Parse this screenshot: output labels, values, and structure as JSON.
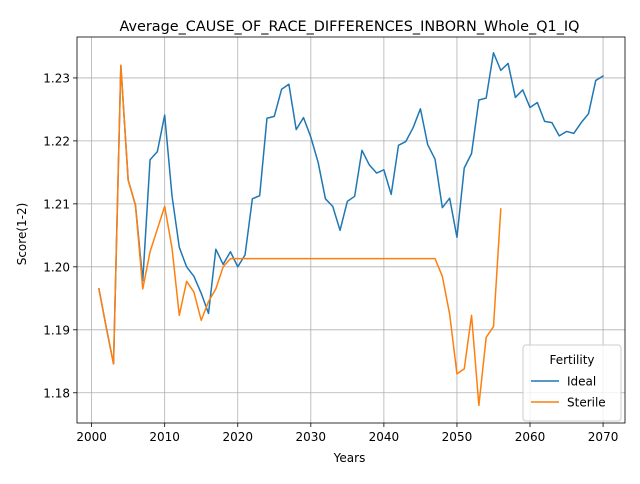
{
  "chart_data": {
    "type": "line",
    "title": "Average_CAUSE_OF_RACE_DIFFERENCES_INBORN_Whole_Q1_IQ",
    "xlabel": "Years",
    "ylabel": "Score(1-2)",
    "xlim": [
      1998,
      2073
    ],
    "ylim": [
      1.1752,
      1.2365
    ],
    "xticks": [
      2000,
      2010,
      2020,
      2030,
      2040,
      2050,
      2060,
      2070
    ],
    "yticks": [
      1.18,
      1.19,
      1.2,
      1.21,
      1.22,
      1.23
    ],
    "ytick_labels": [
      "1.18",
      "1.19",
      "1.20",
      "1.21",
      "1.22",
      "1.23"
    ],
    "xtick_labels": [
      "2000",
      "2010",
      "2020",
      "2030",
      "2040",
      "2050",
      "2060",
      "2070"
    ],
    "grid": true,
    "legend": {
      "title": "Fertility",
      "position": "lower right"
    },
    "series": [
      {
        "name": "Ideal",
        "color": "#1f77b4",
        "x": [
          2001,
          2002,
          2003,
          2004,
          2005,
          2006,
          2007,
          2008,
          2009,
          2010,
          2011,
          2012,
          2013,
          2014,
          2015,
          2016,
          2017,
          2018,
          2019,
          2020,
          2021,
          2022,
          2023,
          2024,
          2025,
          2026,
          2027,
          2028,
          2029,
          2030,
          2031,
          2032,
          2033,
          2034,
          2035,
          2036,
          2037,
          2038,
          2039,
          2040,
          2041,
          2042,
          2043,
          2044,
          2045,
          2046,
          2047,
          2048,
          2049,
          2050,
          2051,
          2052,
          2053,
          2054,
          2055,
          2056,
          2057,
          2058,
          2059,
          2060,
          2061,
          2062,
          2063,
          2064,
          2065,
          2066,
          2067,
          2068,
          2069,
          2070
        ],
        "y": [
          1.1965,
          1.1904,
          1.1846,
          1.232,
          1.2138,
          1.2098,
          1.1978,
          1.217,
          1.2183,
          1.2241,
          1.2113,
          1.2031,
          1.2,
          1.1985,
          1.1958,
          1.1926,
          1.2028,
          1.2004,
          1.2024,
          1.2,
          1.2019,
          1.2108,
          1.2113,
          1.2236,
          1.2239,
          1.2282,
          1.229,
          1.2218,
          1.2237,
          1.2206,
          1.2166,
          1.2108,
          1.2096,
          1.2058,
          1.2104,
          1.2112,
          1.2185,
          1.2162,
          1.2149,
          1.2154,
          1.2115,
          1.2193,
          1.2199,
          1.2221,
          1.2251,
          1.2194,
          1.2171,
          1.2094,
          1.2109,
          1.2047,
          1.2157,
          1.218,
          1.2265,
          1.2268,
          1.234,
          1.2312,
          1.2323,
          1.2269,
          1.2281,
          1.2253,
          1.2261,
          1.2231,
          1.2229,
          1.2208,
          1.2215,
          1.2212,
          1.2229,
          1.2243,
          1.2296,
          1.2303
        ]
      },
      {
        "name": "Sterile",
        "color": "#ff7f0e",
        "x": [
          2001,
          2002,
          2003,
          2004,
          2005,
          2006,
          2007,
          2008,
          2009,
          2010,
          2011,
          2012,
          2013,
          2014,
          2015,
          2016,
          2017,
          2018,
          2019,
          2020,
          2021,
          2022,
          2023,
          2024,
          2025,
          2026,
          2027,
          2028,
          2029,
          2030,
          2031,
          2032,
          2033,
          2034,
          2035,
          2036,
          2037,
          2038,
          2039,
          2040,
          2041,
          2042,
          2043,
          2044,
          2045,
          2046,
          2047,
          2048,
          2049,
          2050,
          2051,
          2052,
          2053,
          2054,
          2055,
          2056
        ],
        "y": [
          1.1965,
          1.1904,
          1.1846,
          1.232,
          1.2138,
          1.2098,
          1.1965,
          1.2024,
          1.206,
          1.2096,
          1.203,
          1.1923,
          1.1977,
          1.196,
          1.1915,
          1.1945,
          1.1965,
          1.2,
          1.2013,
          1.2013,
          1.2013,
          1.2013,
          1.2013,
          1.2013,
          1.2013,
          1.2013,
          1.2013,
          1.2013,
          1.2013,
          1.2013,
          1.2013,
          1.2013,
          1.2013,
          1.2013,
          1.2013,
          1.2013,
          1.2013,
          1.2013,
          1.2013,
          1.2013,
          1.2013,
          1.2013,
          1.2013,
          1.2013,
          1.2013,
          1.2013,
          1.2013,
          1.1985,
          1.1925,
          1.183,
          1.1838,
          1.1923,
          1.178,
          1.1888,
          1.1905,
          1.2092
        ]
      }
    ]
  }
}
